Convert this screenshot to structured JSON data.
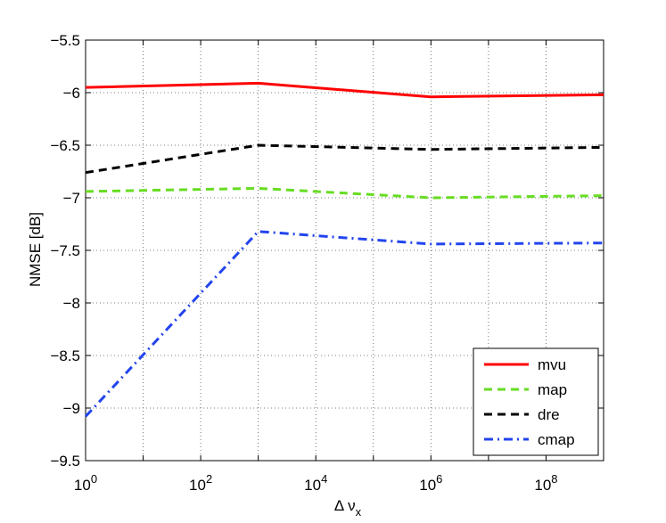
{
  "chart_data": {
    "type": "line",
    "xscale": "log",
    "xlim": [
      1,
      1000000000
    ],
    "ylim": [
      -9.5,
      -5.5
    ],
    "grid": true,
    "xlabel": "Δ ν",
    "xlabel_sub": "x",
    "ylabel": "NMSE [dB]",
    "xticks": [
      {
        "value": 1,
        "base": "10",
        "exp": "0"
      },
      {
        "value": 100,
        "base": "10",
        "exp": "2"
      },
      {
        "value": 10000,
        "base": "10",
        "exp": "4"
      },
      {
        "value": 1000000,
        "base": "10",
        "exp": "6"
      },
      {
        "value": 100000000,
        "base": "10",
        "exp": "8"
      }
    ],
    "yticks": [
      {
        "value": -5.5,
        "label": "−5.5"
      },
      {
        "value": -6,
        "label": "−6"
      },
      {
        "value": -6.5,
        "label": "−6.5"
      },
      {
        "value": -7,
        "label": "−7"
      },
      {
        "value": -7.5,
        "label": "−7.5"
      },
      {
        "value": -8,
        "label": "−8"
      },
      {
        "value": -8.5,
        "label": "−8.5"
      },
      {
        "value": -9,
        "label": "−9"
      },
      {
        "value": -9.5,
        "label": "−9.5"
      }
    ],
    "x": [
      1,
      1000,
      1000000,
      1000000000
    ],
    "series": [
      {
        "name": "mvu",
        "values": [
          -5.95,
          -5.91,
          -6.04,
          -6.02
        ],
        "color": "#ff0000",
        "dash": "solid"
      },
      {
        "name": "map",
        "values": [
          -6.94,
          -6.91,
          -7.0,
          -6.98
        ],
        "color": "#66dd22",
        "dash": "dashed"
      },
      {
        "name": "dre",
        "values": [
          -6.76,
          -6.5,
          -6.54,
          -6.52
        ],
        "color": "#000000",
        "dash": "dashed"
      },
      {
        "name": "cmap",
        "values": [
          -9.08,
          -7.32,
          -7.44,
          -7.43
        ],
        "color": "#2244ee",
        "dash": "dashdot"
      }
    ],
    "legend": {
      "position": "bottom-right"
    }
  }
}
